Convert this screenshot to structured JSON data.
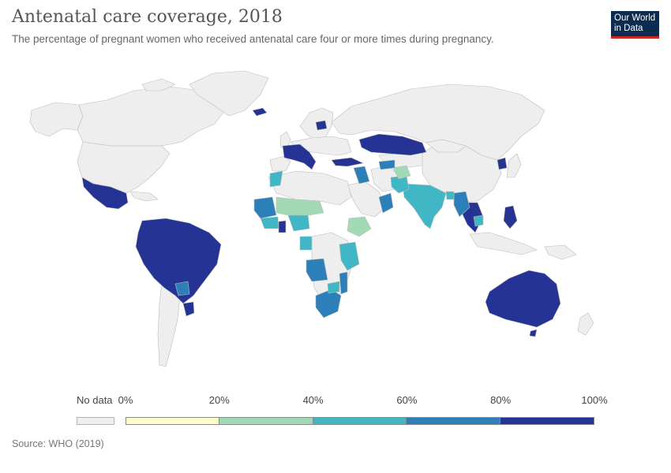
{
  "header": {
    "title": "Antenatal care coverage, 2018",
    "subtitle": "The percentage of pregnant women who received antenatal care four or more times during pregnancy."
  },
  "logo": {
    "line1": "Our World",
    "line2": "in Data",
    "bg": "#0d2a4f",
    "accent": "#ce261e"
  },
  "legend": {
    "no_data_label": "No data",
    "no_data_color": "#eeeeee",
    "ticks": [
      "0%",
      "20%",
      "40%",
      "60%",
      "80%",
      "100%"
    ],
    "bins": [
      {
        "range": [
          0,
          20
        ],
        "color": "#ffffcc"
      },
      {
        "range": [
          20,
          40
        ],
        "color": "#a1dab4"
      },
      {
        "range": [
          40,
          60
        ],
        "color": "#41b6c4"
      },
      {
        "range": [
          60,
          80
        ],
        "color": "#2c7fb8"
      },
      {
        "range": [
          80,
          100
        ],
        "color": "#253494"
      }
    ]
  },
  "source": "Source: WHO (2019)",
  "map_colors": {
    "no_data": "#eeeeee",
    "border": "#bdbdbd",
    "level_20_40": "#a1dab4",
    "level_40_60": "#41b6c4",
    "level_60_80": "#2c7fb8",
    "level_80_100": "#253494"
  }
}
